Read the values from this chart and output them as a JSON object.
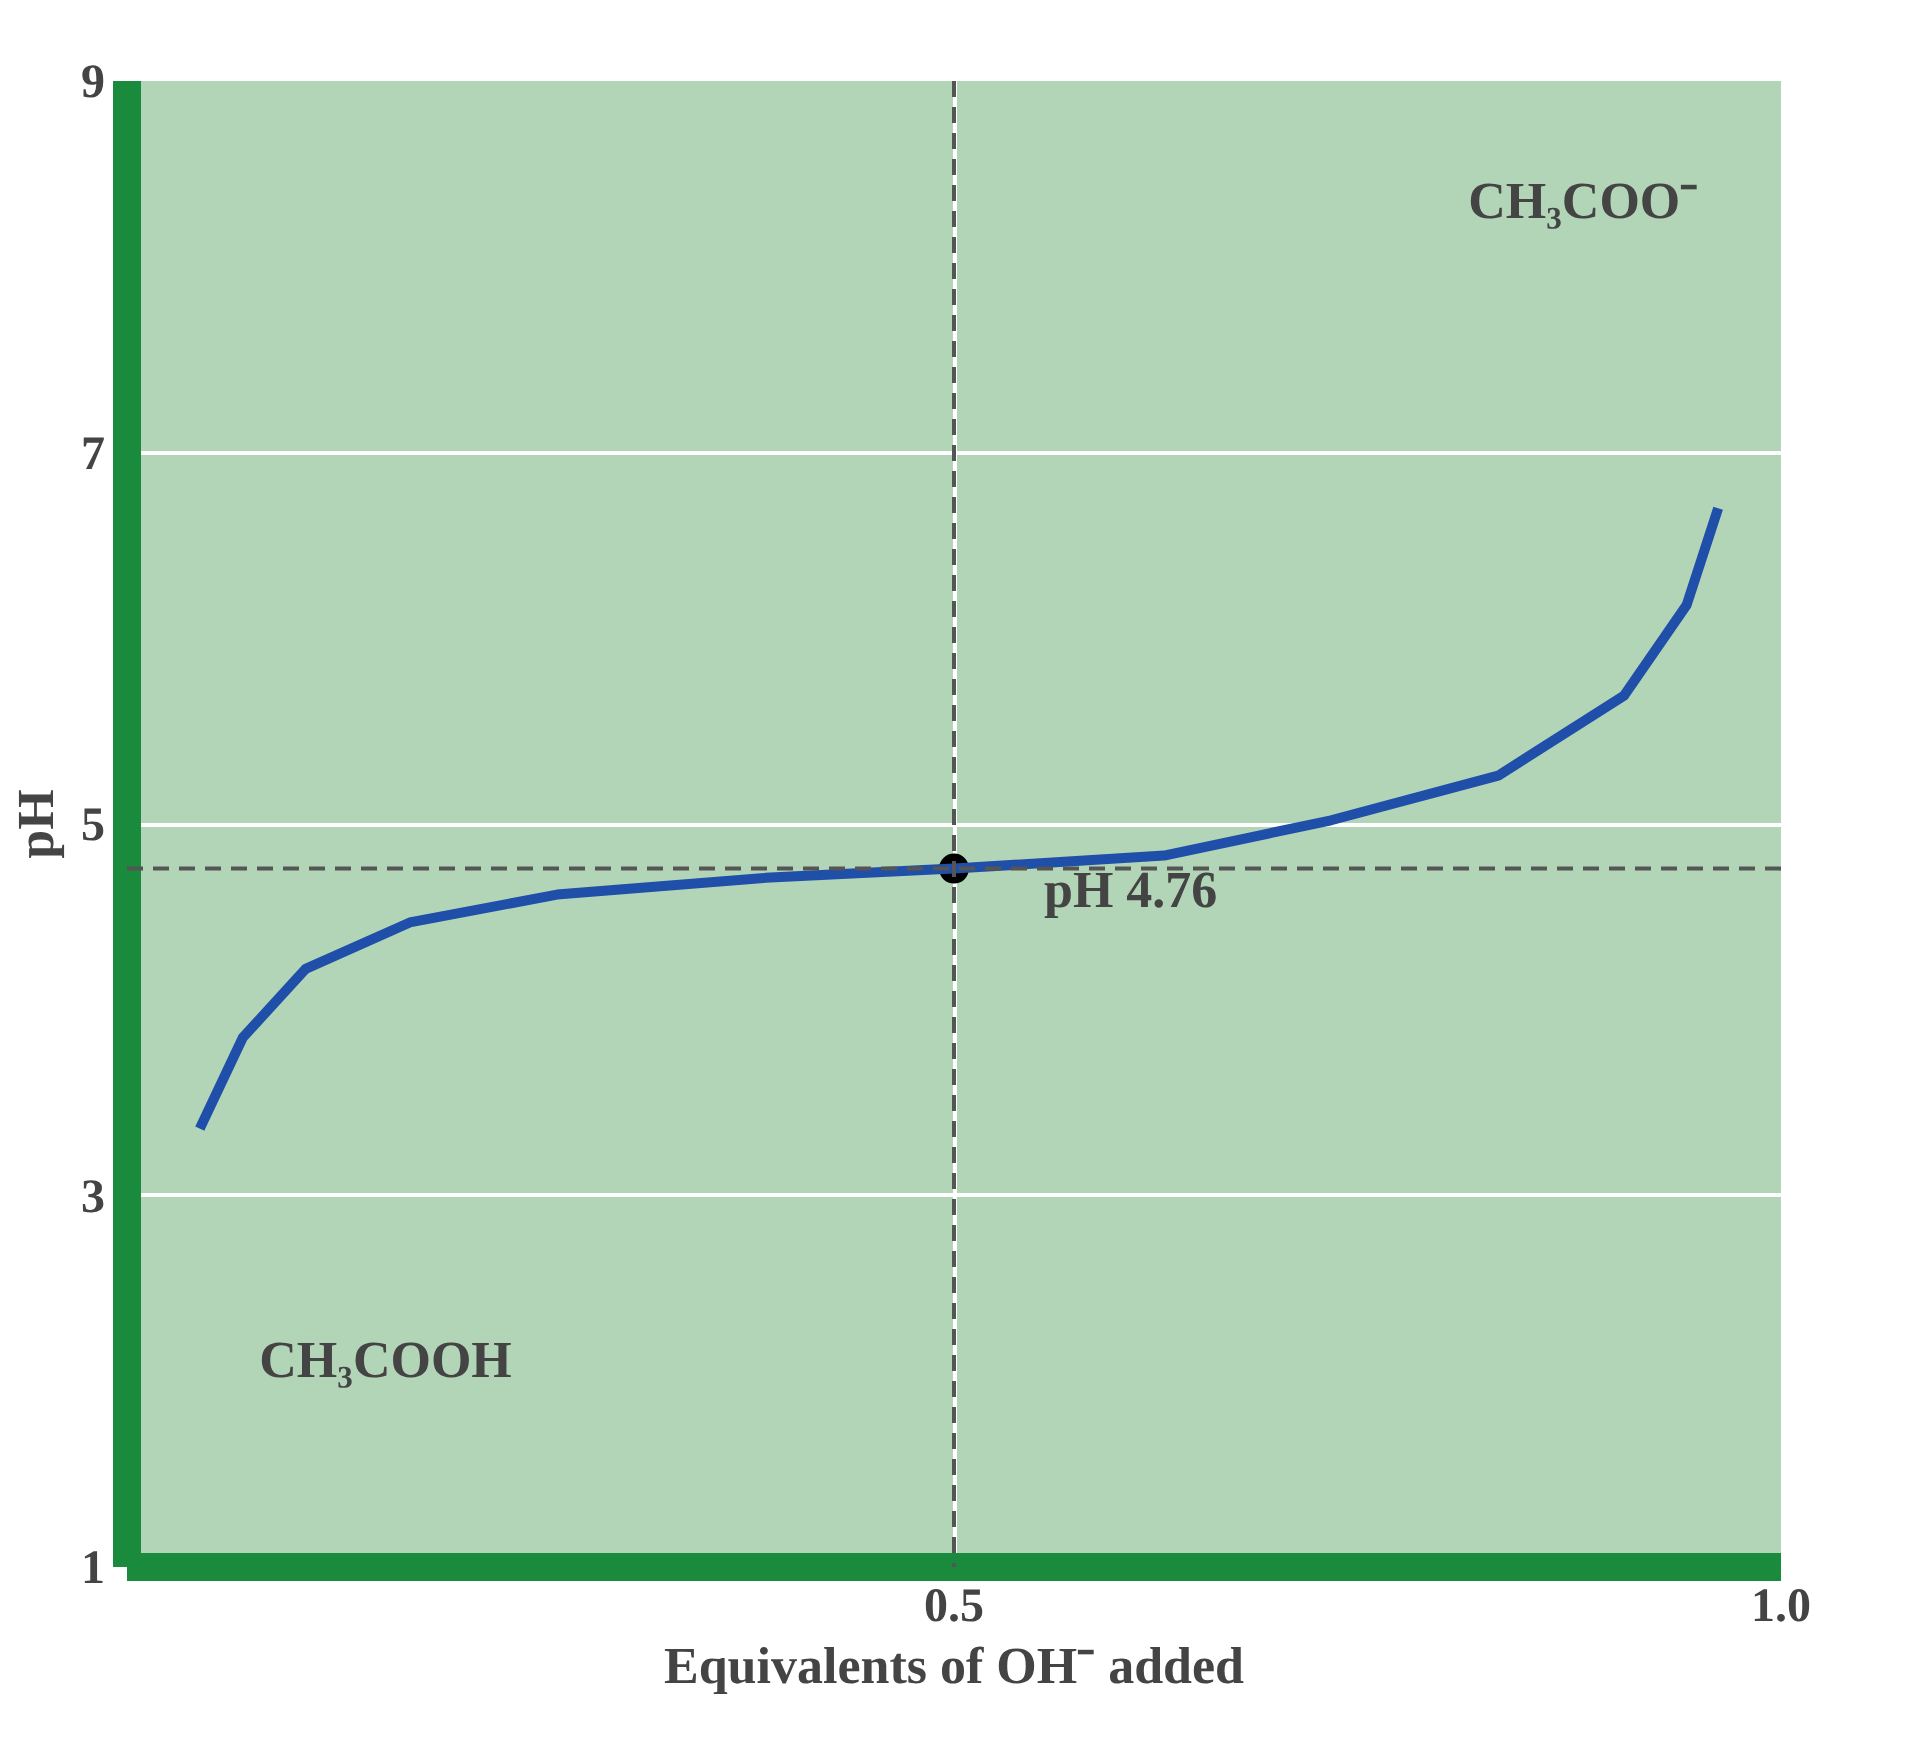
{
  "chart_data": {
    "type": "line",
    "xlabel": "Equivalents of OH⁻ added",
    "ylabel": "pH",
    "xlim": [
      0,
      1
    ],
    "ylim": [
      1,
      9
    ],
    "xticks": [
      0.5,
      {
        "value": 1,
        "label": "1.0"
      }
    ],
    "yticks": [
      1,
      3,
      5,
      7,
      9
    ],
    "grid": true,
    "series": [
      {
        "color": "#1f4fa8",
        "x": [
          0.044,
          0.07,
          0.108,
          0.171,
          0.26,
          0.386,
          0.5,
          0.627,
          0.728,
          0.829,
          0.905,
          0.943,
          0.962
        ],
        "values": [
          3.36,
          3.85,
          4.22,
          4.47,
          4.62,
          4.71,
          4.76,
          4.83,
          5.02,
          5.26,
          5.69,
          6.18,
          6.7
        ]
      },
      {
        "type": "scatter",
        "marker": "circle",
        "color": "#000000",
        "x": [
          0.5
        ],
        "values": [
          4.76
        ]
      }
    ],
    "ref_lines": [
      {
        "axis": "x",
        "value": 0.5,
        "color": "#555555",
        "line_style": "dashed"
      },
      {
        "axis": "y",
        "value": 4.76,
        "color": "#555555",
        "line_style": "dashed"
      }
    ],
    "annotations": [
      "CH₃COO⁻",
      "CH₃COOH",
      {
        "text": "pH 4.76",
        "x": 0.5,
        "y": 4.76
      }
    ]
  }
}
